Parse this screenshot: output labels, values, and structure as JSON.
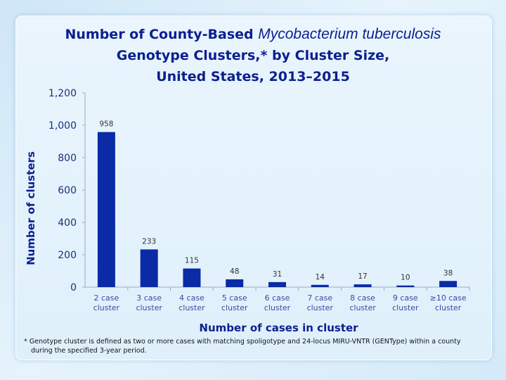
{
  "title": {
    "line1_prefix": "Number of County-Based ",
    "line1_italic": "Mycobacterium tuberculosis",
    "line2": "Genotype Clusters,* by Cluster Size,",
    "line3": "United States, 2013–2015"
  },
  "footnote": {
    "line1": "* Genotype cluster is defined as two or more cases with matching spoligotype and 24-locus MIRU-VNTR (GENType) within a county",
    "line2": "during the specified 3-year period."
  },
  "chart_data": {
    "type": "bar",
    "categories": [
      [
        "2 case",
        "cluster"
      ],
      [
        "3 case",
        "cluster"
      ],
      [
        "4 case",
        "cluster"
      ],
      [
        "5 case",
        "cluster"
      ],
      [
        "6 case",
        "cluster"
      ],
      [
        "7 case",
        "cluster"
      ],
      [
        "8 case",
        "cluster"
      ],
      [
        "9 case",
        "cluster"
      ],
      [
        "≥10 case",
        "cluster"
      ]
    ],
    "values": [
      958,
      233,
      115,
      48,
      31,
      14,
      17,
      10,
      38
    ],
    "data_labels": [
      "958",
      "233",
      "115",
      "48",
      "31",
      "14",
      "17",
      "10",
      "38"
    ],
    "xlabel": "Number of cases in cluster",
    "ylabel": "Number of clusters",
    "ylim": [
      0,
      1200
    ],
    "yticks": [
      0,
      200,
      400,
      600,
      800,
      1000,
      1200
    ],
    "ytick_labels": [
      "0",
      "200",
      "400",
      "600",
      "800",
      "1,000",
      "1,200"
    ],
    "grid": false,
    "bar_color": "#0a2aa6",
    "axis_color": "#9aa9c4"
  }
}
